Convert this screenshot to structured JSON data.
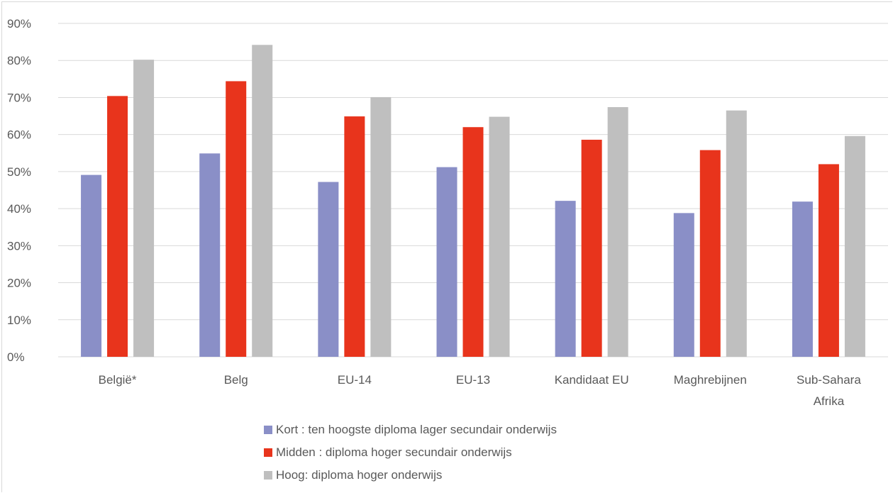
{
  "chart_data": {
    "type": "bar",
    "title": "",
    "xlabel": "",
    "ylabel": "",
    "ylim": [
      0,
      90
    ],
    "y_ticks": [
      "0%",
      "10%",
      "20%",
      "30%",
      "40%",
      "50%",
      "60%",
      "70%",
      "80%",
      "90%"
    ],
    "grid": true,
    "legend_position": "bottom",
    "categories": [
      [
        "België*"
      ],
      [
        "Belg"
      ],
      [
        "EU-14"
      ],
      [
        "EU-13"
      ],
      [
        "Kandidaat EU"
      ],
      [
        "Maghrebijnen"
      ],
      [
        "Sub-Sahara",
        "Afrika"
      ]
    ],
    "series": [
      {
        "name": "Kort : ten hoogste diploma lager secundair onderwijs",
        "color": "#8a8fc7",
        "values": [
          49.1,
          54.9,
          47.2,
          51.2,
          42.1,
          38.8,
          41.9
        ]
      },
      {
        "name": "Midden : diploma hoger secundair onderwijs",
        "color": "#e8341c",
        "values": [
          70.4,
          74.4,
          64.9,
          62.0,
          58.6,
          55.8,
          52.0
        ]
      },
      {
        "name": "Hoog: diploma hoger onderwijs",
        "color": "#bfbfbf",
        "values": [
          80.2,
          84.2,
          70.1,
          64.8,
          67.4,
          66.5,
          59.6
        ]
      }
    ]
  }
}
